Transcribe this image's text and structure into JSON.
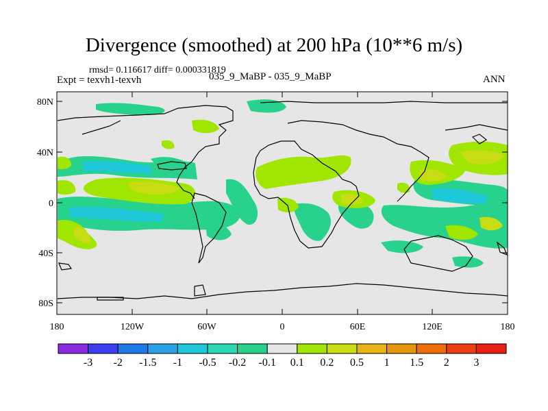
{
  "title": "Divergence (smoothed) at 200 hPa (10**6 m/s)",
  "stats": "rmsd= 0.116617 diff= 0.000331819",
  "experiment": "Expt = texvh1-texvh",
  "case_label": "035_9_MaBP - 035_9_MaBP",
  "season": "ANN",
  "lat_ticks": [
    "80N",
    "40N",
    "0",
    "40S",
    "80S"
  ],
  "lon_ticks": [
    "180",
    "120W",
    "60W",
    "0",
    "60E",
    "120E",
    "180"
  ],
  "colorbar": {
    "labels": [
      "-3",
      "-2",
      "-1.5",
      "-1",
      "-0.5",
      "-0.2",
      "-0.1",
      "0.1",
      "0.2",
      "0.5",
      "1",
      "1.5",
      "2",
      "3"
    ],
    "colors": [
      "#8a2be2",
      "#3c3cf0",
      "#1e78e6",
      "#2aa0e6",
      "#1ec8d8",
      "#2ed7b4",
      "#28d28c",
      "#e6e6e6",
      "#a0e600",
      "#c8dc14",
      "#e6b414",
      "#e6960a",
      "#eb6e0a",
      "#eb3c14",
      "#e61e14"
    ]
  },
  "colors": {
    "land_ocean_bg": "#e6e6e6",
    "pos_weak": "#a0e600",
    "pos_mid": "#c8dc14",
    "neg_weak": "#28d28c",
    "neg_mid": "#1ec8d8",
    "coast": "#000000"
  },
  "map_data": {
    "type": "filled-contour",
    "projection": "cylindrical-equidistant",
    "lon_range": [
      -180,
      180
    ],
    "lat_range": [
      -90,
      90
    ]
  }
}
